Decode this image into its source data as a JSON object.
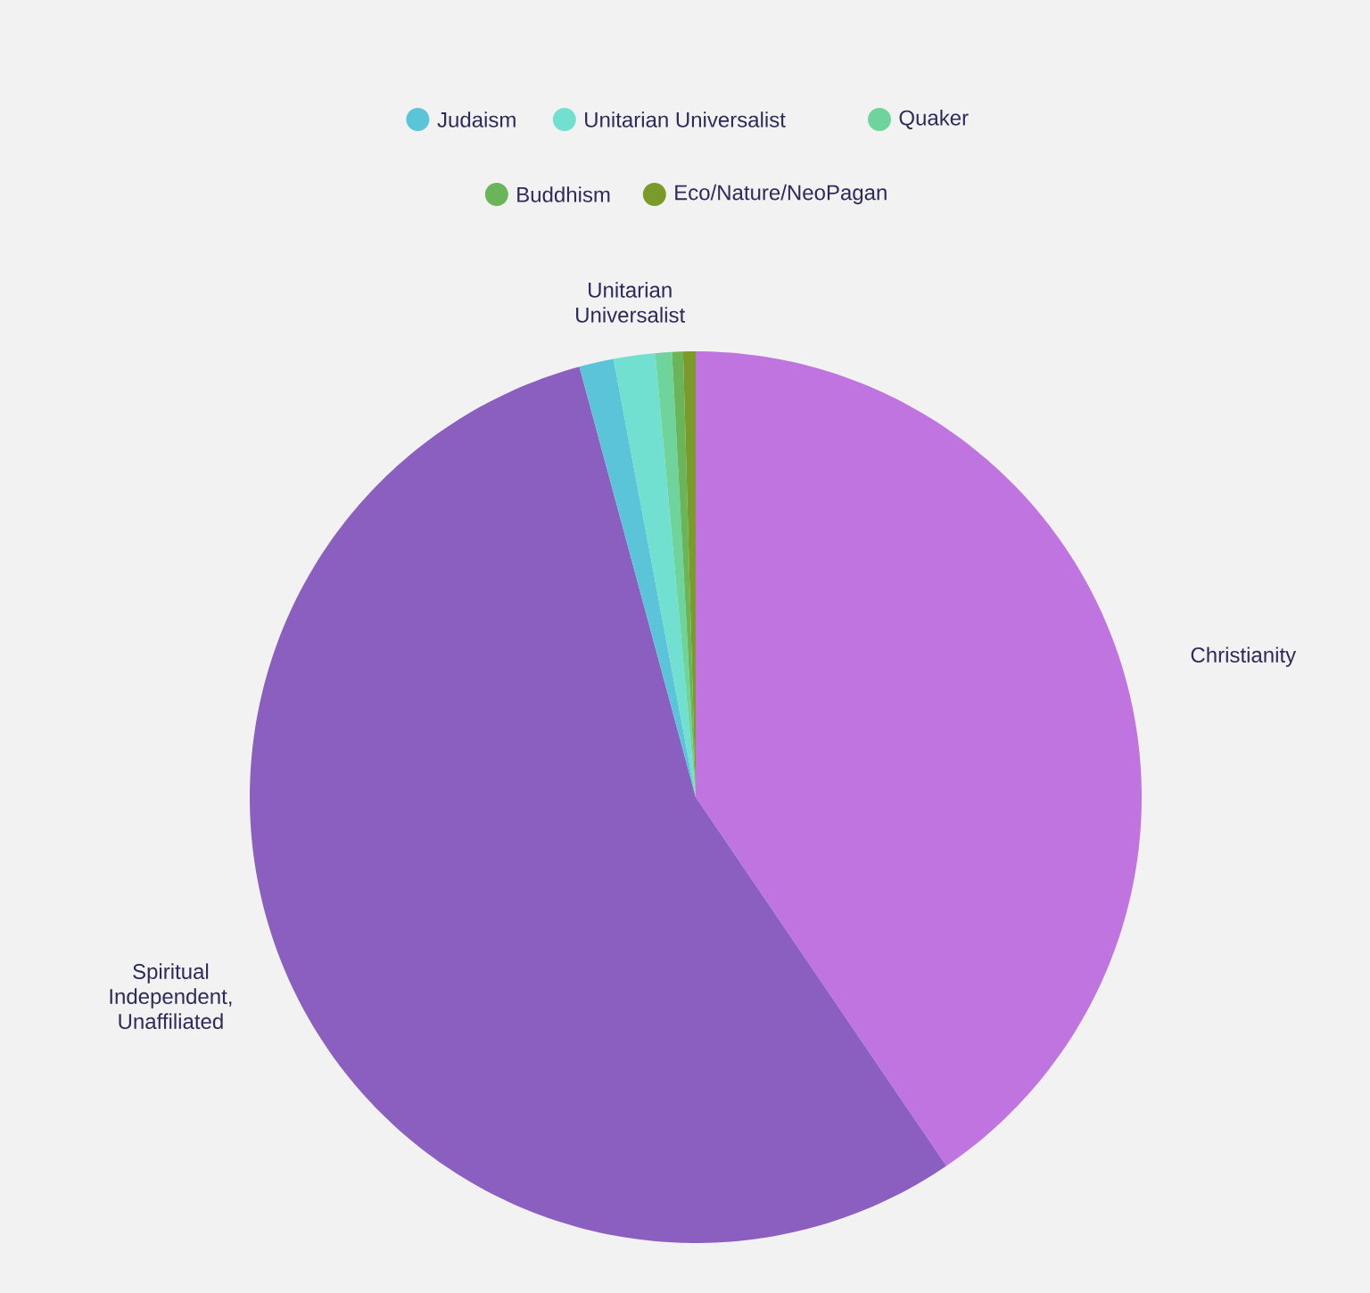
{
  "chart_data": {
    "type": "pie",
    "categories": [
      "Christianity",
      "Spiritual Independent, Unaffiliated",
      "Judaism",
      "Unitarian Universalist",
      "Quaker",
      "Buddhism",
      "Eco/Nature/NeoPagan"
    ],
    "values": [
      40.5,
      55.3,
      1.25,
      1.5,
      0.6,
      0.4,
      0.45
    ],
    "colors": [
      "#c074e0",
      "#8a5fbf",
      "#5bc4d8",
      "#72e0d0",
      "#6fd49c",
      "#6ab55a",
      "#7a9a2a"
    ],
    "legend": "top"
  }
}
